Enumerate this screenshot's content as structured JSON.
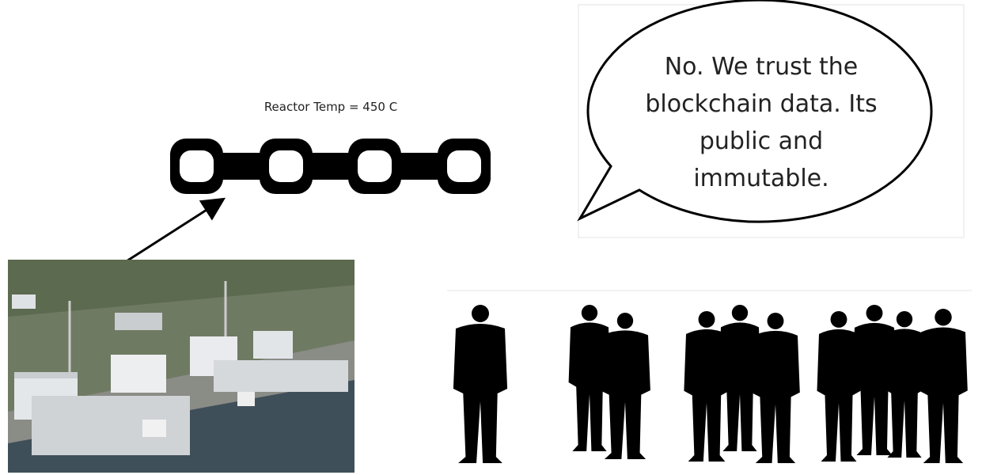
{
  "reactor_label": "Reactor Temp = 450 C",
  "speech_bubble": {
    "lines": [
      "No. We trust the",
      "blockchain data. Its",
      "public and",
      "immutable."
    ]
  }
}
